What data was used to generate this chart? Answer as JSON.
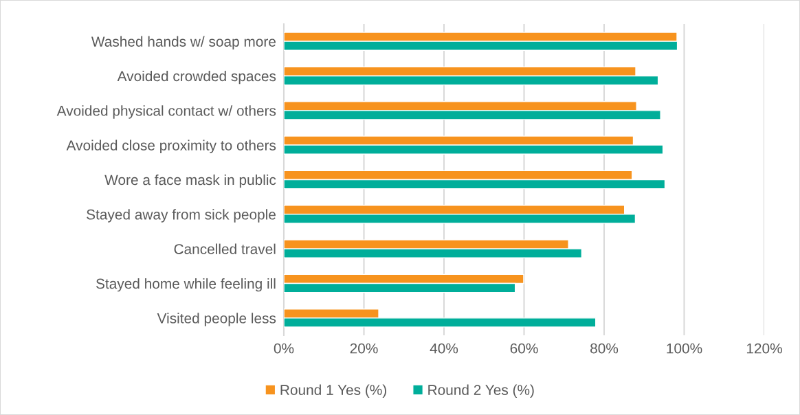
{
  "chart_data": {
    "type": "bar",
    "orientation": "horizontal",
    "categories": [
      "Washed hands w/ soap more",
      "Avoided crowded spaces",
      "Avoided physical contact w/ others",
      "Avoided close proximity to others",
      "Wore a face mask in public",
      "Stayed away from sick people",
      "Cancelled travel",
      "Stayed home while feeling ill",
      "Visited people less"
    ],
    "series": [
      {
        "name": "Round 1 Yes (%)",
        "color": "#f7931e",
        "values": [
          98.2,
          87.9,
          88.1,
          87.3,
          87.0,
          85.1,
          71.1,
          59.9,
          23.7
        ]
      },
      {
        "name": "Round 2 Yes (%)",
        "color": "#00ae9a",
        "values": [
          98.3,
          93.5,
          94.1,
          94.7,
          95.2,
          87.8,
          74.4,
          57.8,
          77.9
        ]
      }
    ],
    "xlim": [
      0,
      120
    ],
    "xticks": [
      {
        "value": 0,
        "label": "0%"
      },
      {
        "value": 20,
        "label": "20%"
      },
      {
        "value": 40,
        "label": "40%"
      },
      {
        "value": 60,
        "label": "60%"
      },
      {
        "value": 80,
        "label": "80%"
      },
      {
        "value": 100,
        "label": "100%"
      },
      {
        "value": 120,
        "label": "120%"
      }
    ],
    "grid": "x",
    "legend": "bottom"
  }
}
